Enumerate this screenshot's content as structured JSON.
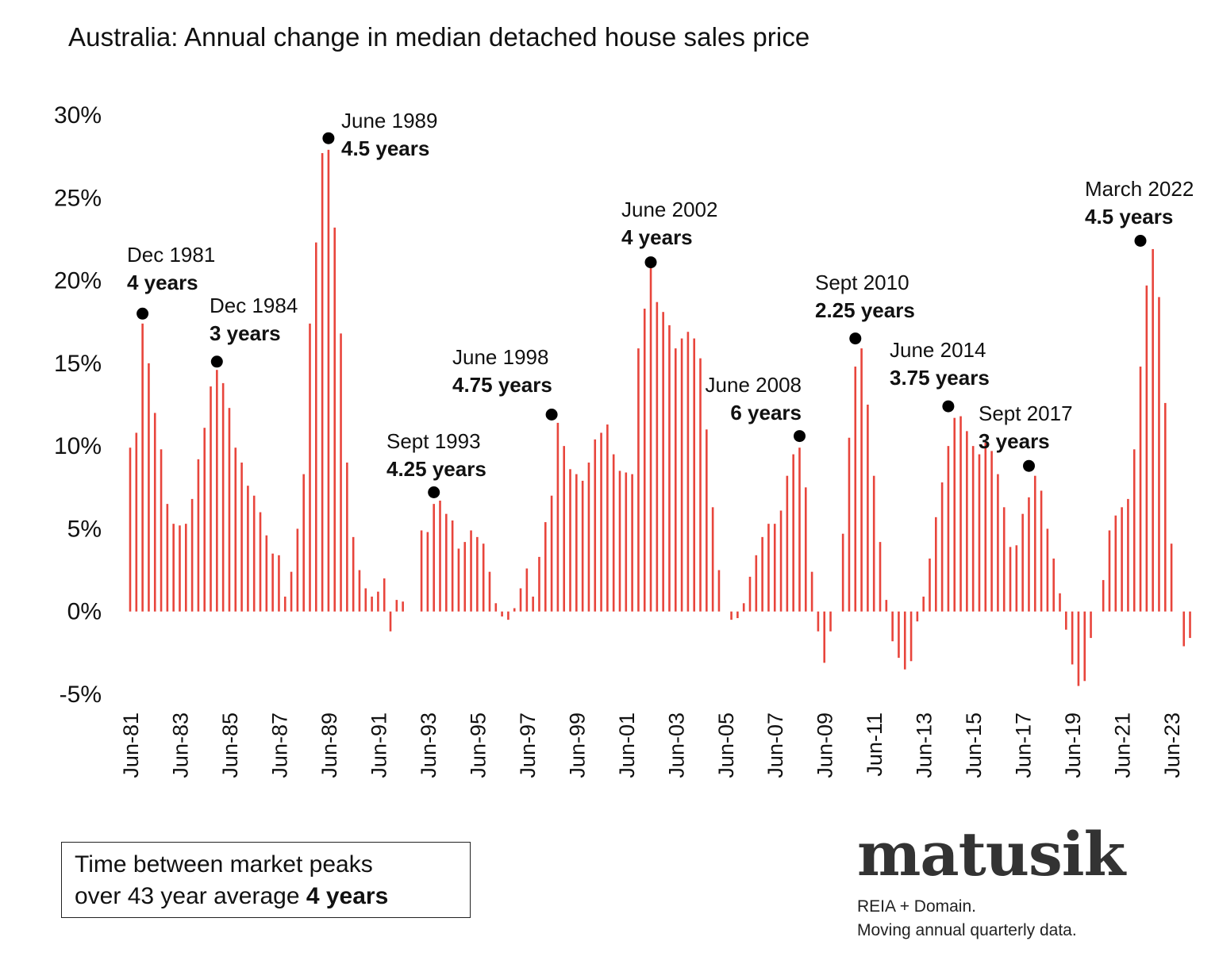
{
  "chart_data": {
    "type": "bar",
    "title": "Australia: Annual change in median detached house sales price",
    "ylim": [
      -5,
      30
    ],
    "y_ticks": [
      30,
      25,
      20,
      15,
      10,
      5,
      0,
      -5
    ],
    "y_tick_labels": [
      "30%",
      "25%",
      "20%",
      "15%",
      "10%",
      "5%",
      "0%",
      "-5%"
    ],
    "x_tick_labels": [
      "Jun-81",
      "Jun-83",
      "Jun-85",
      "Jun-87",
      "Jun-89",
      "Jun-91",
      "Jun-93",
      "Jun-95",
      "Jun-97",
      "Jun-99",
      "Jun-01",
      "Jun-03",
      "Jun-05",
      "Jun-07",
      "Jun-09",
      "Jun-11",
      "Jun-13",
      "Jun-15",
      "Jun-17",
      "Jun-19",
      "Jun-21",
      "Jun-23"
    ],
    "grid": false,
    "bar_color": "#e8453c",
    "series": [
      {
        "name": "",
        "values": [
          9.9,
          10.8,
          17.4,
          15.0,
          12.0,
          9.8,
          6.5,
          5.3,
          5.2,
          5.3,
          6.8,
          9.2,
          11.1,
          13.6,
          14.6,
          13.8,
          12.3,
          9.9,
          9.0,
          7.6,
          7.0,
          6.0,
          4.6,
          3.5,
          3.4,
          0.9,
          2.4,
          5.0,
          8.3,
          17.4,
          22.3,
          27.7,
          27.9,
          23.2,
          16.8,
          9.0,
          4.5,
          2.5,
          1.4,
          0.9,
          1.2,
          2.0,
          -1.2,
          0.7,
          0.6,
          0,
          0,
          4.9,
          4.8,
          6.5,
          6.7,
          5.9,
          5.5,
          3.8,
          4.2,
          4.9,
          4.5,
          4.1,
          2.4,
          0.5,
          -0.3,
          -0.5,
          0.2,
          1.4,
          2.6,
          0.9,
          3.3,
          5.4,
          7.0,
          11.4,
          10.0,
          8.6,
          8.3,
          7.9,
          9.0,
          10.4,
          10.8,
          11.3,
          9.5,
          8.5,
          8.4,
          8.3,
          15.9,
          18.3,
          20.8,
          18.7,
          18.1,
          17.3,
          15.9,
          16.5,
          16.9,
          16.5,
          15.3,
          11.0,
          6.3,
          2.5,
          0,
          -0.5,
          -0.4,
          0.5,
          2.1,
          3.4,
          4.5,
          5.3,
          5.3,
          6.1,
          8.2,
          9.5,
          9.9,
          7.5,
          2.4,
          -1.2,
          -3.1,
          -1.2,
          0,
          4.7,
          10.5,
          14.8,
          15.9,
          12.5,
          8.2,
          4.2,
          0.7,
          -1.8,
          -2.8,
          -3.5,
          -3.0,
          -0.6,
          0.9,
          3.2,
          5.7,
          7.8,
          10.0,
          11.7,
          11.8,
          10.9,
          10.0,
          9.5,
          10.2,
          9.7,
          8.3,
          6.3,
          3.9,
          4.0,
          5.9,
          6.9,
          8.2,
          7.3,
          5.0,
          3.2,
          1.1,
          -1.1,
          -3.2,
          -4.5,
          -4.2,
          -1.6,
          0,
          1.9,
          4.9,
          5.8,
          6.3,
          6.8,
          9.8,
          14.8,
          19.7,
          21.9,
          19.0,
          12.6,
          4.1,
          0,
          -2.1,
          -1.6
        ]
      }
    ],
    "annotations": [
      {
        "label": "Dec 1981",
        "duration": "4 years",
        "x_index": 2,
        "value": 18.0
      },
      {
        "label": "Dec 1984",
        "duration": "3 years",
        "x_index": 14,
        "value": 15.1
      },
      {
        "label": "June 1989",
        "duration": "4.5 years",
        "x_index": 32,
        "value": 28.6
      },
      {
        "label": "Sept 1993",
        "duration": "4.25 years",
        "x_index": 49,
        "value": 7.2
      },
      {
        "label": "June 1998",
        "duration": "4.75 years",
        "x_index": 68,
        "value": 11.9
      },
      {
        "label": "June 2002",
        "duration": "4 years",
        "x_index": 84,
        "value": 21.1
      },
      {
        "label": "June 2008",
        "duration": "6 years",
        "x_index": 108,
        "value": 10.6
      },
      {
        "label": "Sept 2010",
        "duration": "2.25 years",
        "x_index": 117,
        "value": 16.5
      },
      {
        "label": "June 2014",
        "duration": "3.75 years",
        "x_index": 132,
        "value": 12.4
      },
      {
        "label": "Sept 2017",
        "duration": "3 years",
        "x_index": 145,
        "value": 8.8
      },
      {
        "label": "March 2022",
        "duration": "4.5 years",
        "x_index": 163,
        "value": 22.4
      }
    ]
  },
  "info_box": {
    "line1": "Time between market peaks",
    "line2_prefix": "over 43 year average ",
    "line2_bold": "4 years"
  },
  "brand": {
    "logo_text": "matusik",
    "source_line1": "REIA + Domain.",
    "source_line2": "Moving annual quarterly data."
  }
}
